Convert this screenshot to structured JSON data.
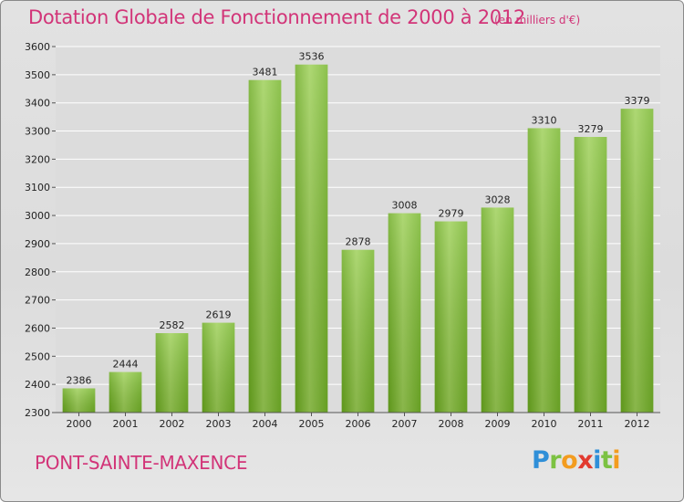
{
  "chart_data": {
    "type": "bar",
    "title": "Dotation Globale de Fonctionnement de 2000 à 2012",
    "subtitle": "(en milliers d'€)",
    "categories": [
      "2000",
      "2001",
      "2002",
      "2003",
      "2004",
      "2005",
      "2006",
      "2007",
      "2008",
      "2009",
      "2010",
      "2011",
      "2012"
    ],
    "values": [
      2386,
      2444,
      2582,
      2619,
      3481,
      3536,
      2878,
      3008,
      2979,
      3028,
      3310,
      3279,
      3379
    ],
    "ylim": [
      2300,
      3600
    ],
    "yticks": [
      2300,
      2400,
      2500,
      2600,
      2700,
      2800,
      2900,
      3000,
      3100,
      3200,
      3300,
      3400,
      3500,
      3600
    ],
    "grid": true,
    "xlabel": "",
    "ylabel": "",
    "bar_color": "#7bbf2c",
    "grid_color": "#ffffff"
  },
  "footer": {
    "commune": "PONT-SAINTE-MAXENCE",
    "logo_letters": [
      {
        "ch": "P",
        "color": "#2f8fd8"
      },
      {
        "ch": "r",
        "color": "#7cc242"
      },
      {
        "ch": "o",
        "color": "#f39c1f"
      },
      {
        "ch": "x",
        "color": "#e23a2f"
      },
      {
        "ch": "i",
        "color": "#2f8fd8"
      },
      {
        "ch": "t",
        "color": "#7cc242"
      },
      {
        "ch": "i",
        "color": "#f39c1f"
      }
    ]
  }
}
